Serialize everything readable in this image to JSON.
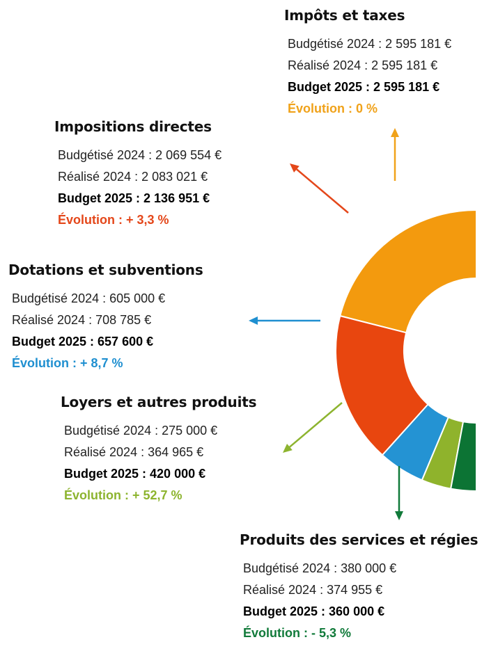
{
  "chart_data": {
    "type": "pie",
    "style": "half-donut",
    "categories": [
      "Impôts et taxes",
      "Impositions directes",
      "Dotations et subventions",
      "Loyers et autres produits",
      "Produits des services et régies"
    ],
    "series": [
      {
        "values": [
          2595181,
          2136951,
          657600,
          420000,
          360000
        ]
      }
    ],
    "colors": [
      "#f39a0e",
      "#e8460f",
      "#2493d3",
      "#8fb32c",
      "#0c7434"
    ],
    "items": [
      {
        "title": "Impôts et taxes",
        "budgetise": "Budgétisé 2024 : 2 595 181 €",
        "realise": "Réalisé 2024 : 2 595 181 €",
        "budget": "Budget 2025 : 2 595 181 €",
        "evolution": "Évolution : 0 %",
        "budget_2025_value": 2595181,
        "color": "#f0a21a"
      },
      {
        "title": "Impositions directes",
        "budgetise": "Budgétisé 2024 : 2 069 554 €",
        "realise": "Réalisé 2024 : 2 083 021 €",
        "budget": "Budget 2025 : 2 136 951 €",
        "evolution": "Évolution : + 3,3 %",
        "budget_2025_value": 2136951,
        "color": "#e4471a"
      },
      {
        "title": "Dotations et subventions",
        "budgetise": "Budgétisé 2024 : 605 000 €",
        "realise": "Réalisé 2024 : 708 785 €",
        "budget": "Budget 2025 : 657 600 €",
        "evolution": "Évolution : + 8,7 %",
        "budget_2025_value": 657600,
        "color": "#1f8fd0"
      },
      {
        "title": "Loyers et autres produits",
        "budgetise": "Budgétisé 2024 : 275 000 €",
        "realise": "Réalisé 2024 : 364 965 €",
        "budget": "Budget 2025 : 420 000 €",
        "evolution": "Évolution : + 52,7 %",
        "budget_2025_value": 420000,
        "color": "#8db42f"
      },
      {
        "title": "Produits des services et régies",
        "budgetise": "Budgétisé 2024 : 380 000 €",
        "realise": "Réalisé 2024 : 374 955 €",
        "budget": "Budget 2025 : 360 000 €",
        "evolution": "Évolution : - 5,3 %",
        "budget_2025_value": 360000,
        "color": "#117a3a"
      }
    ]
  }
}
